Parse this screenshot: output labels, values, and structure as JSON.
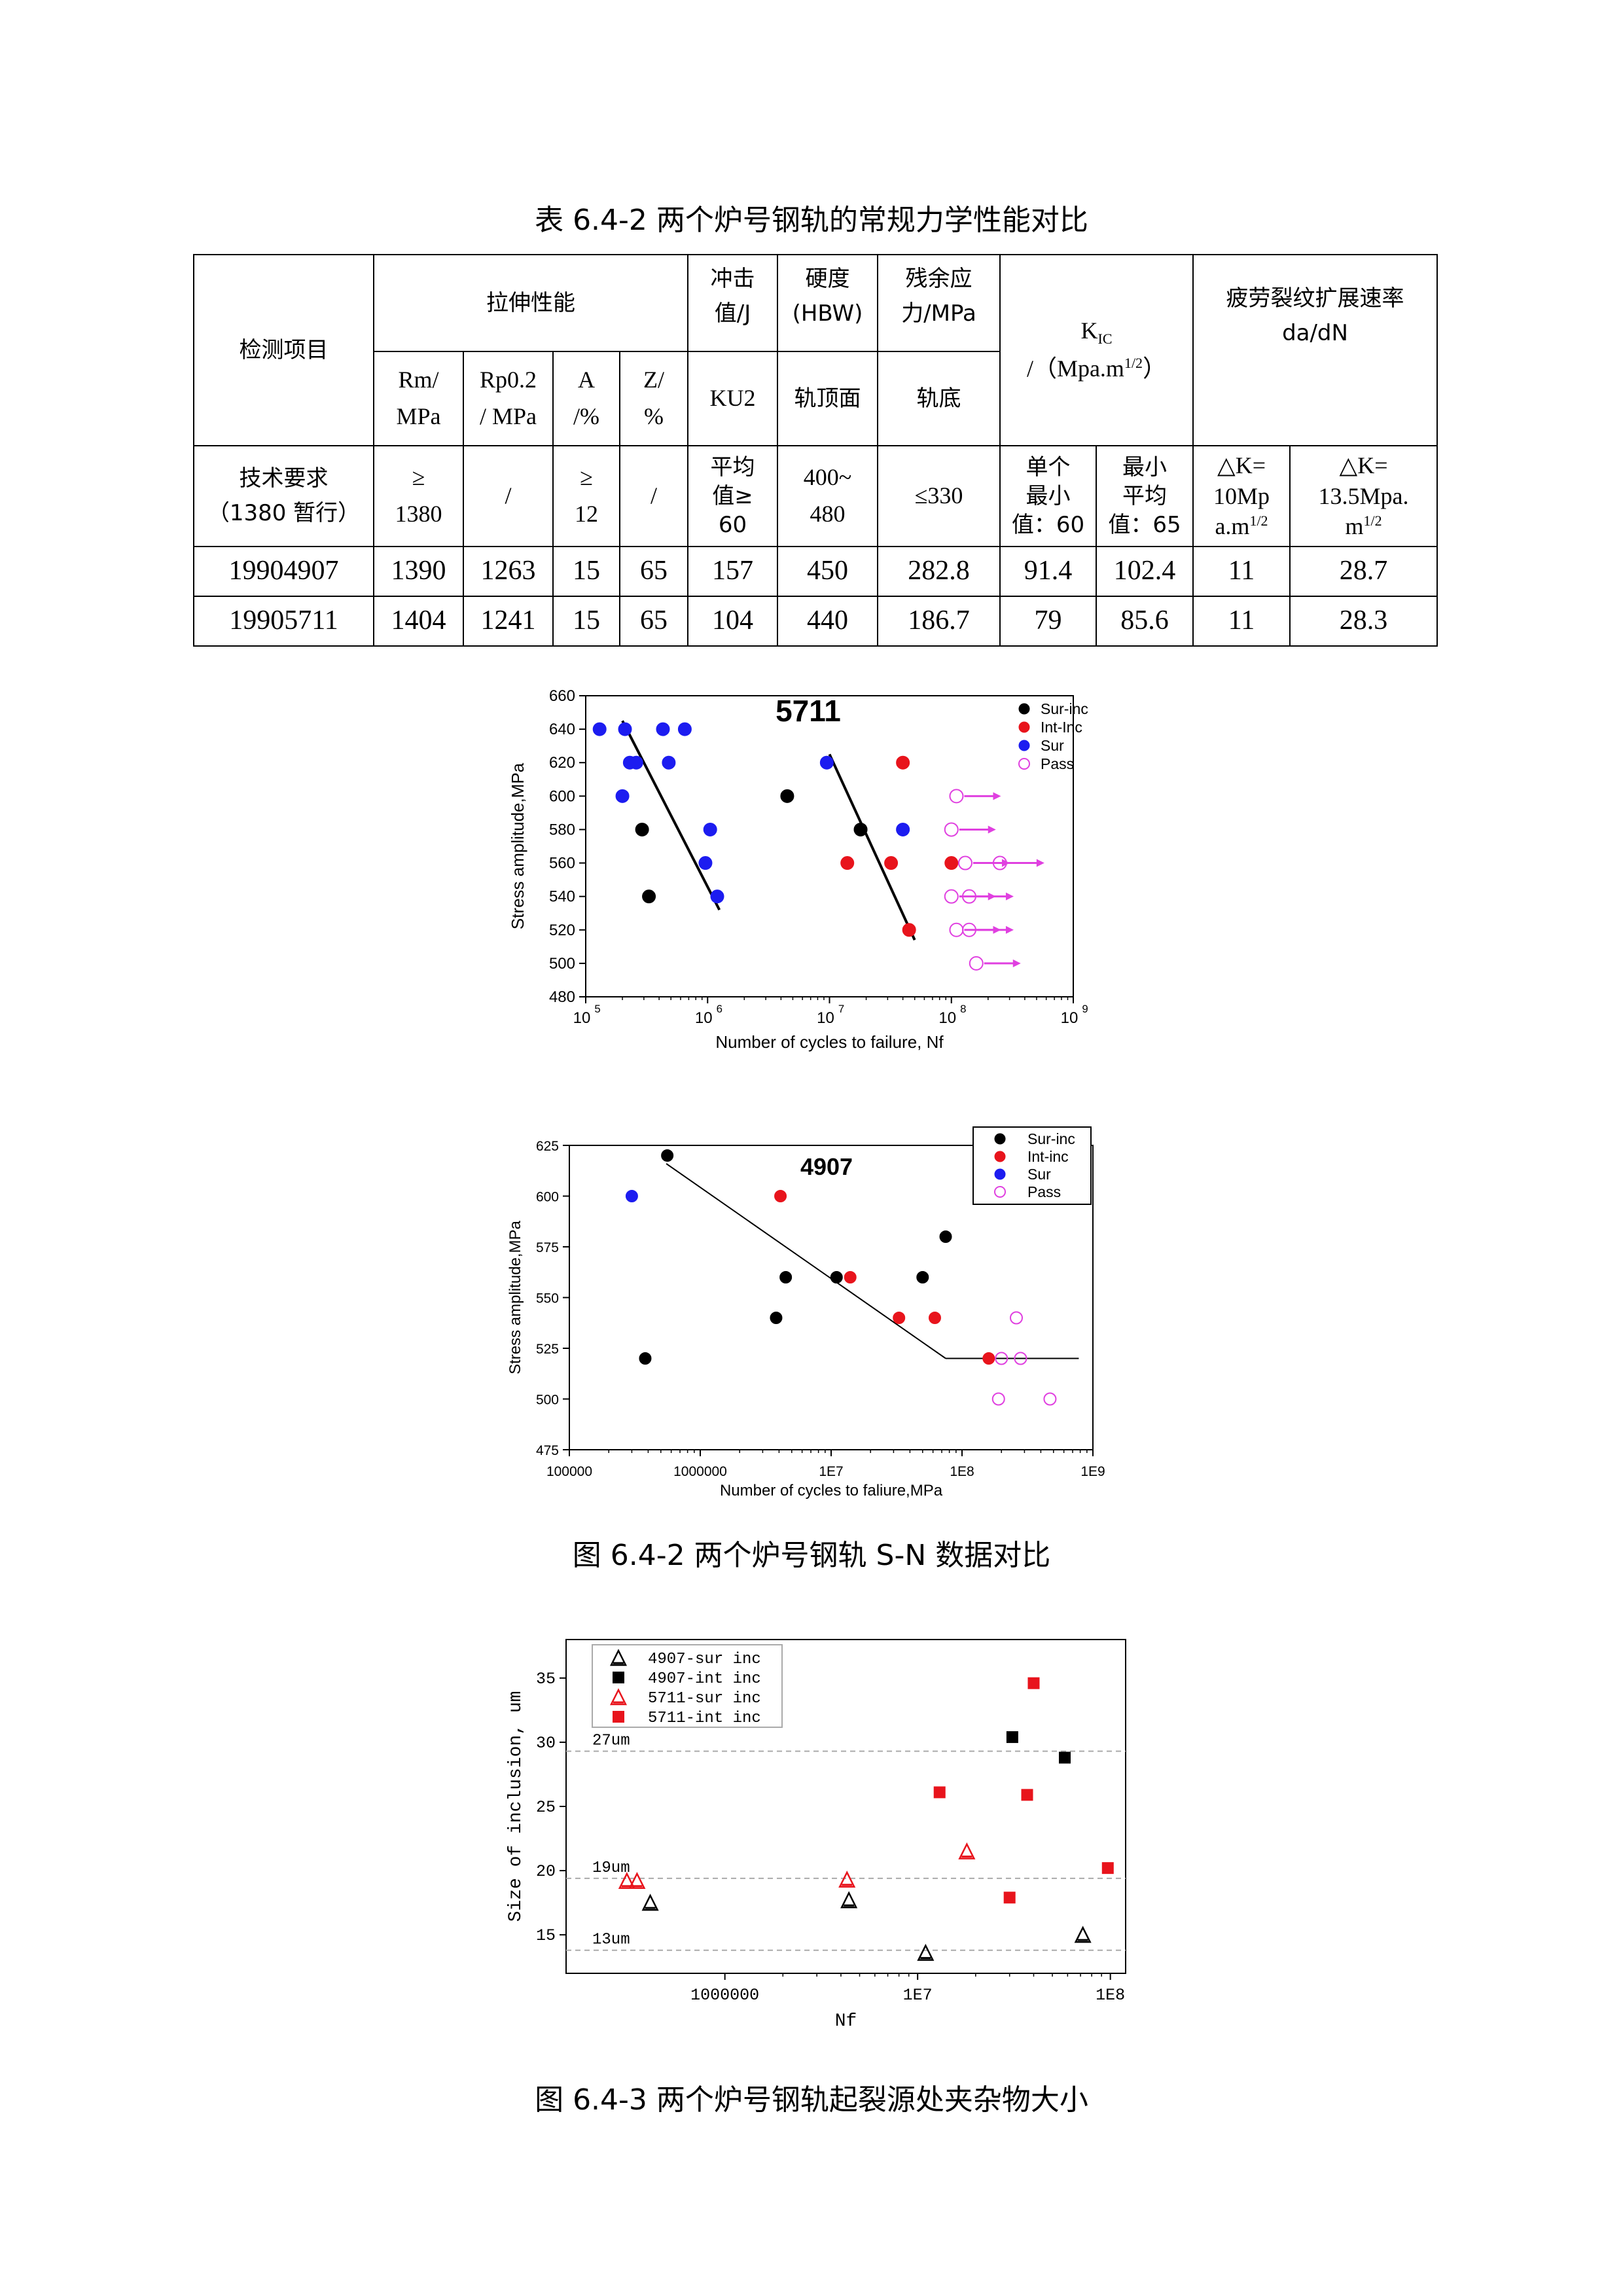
{
  "table_caption": "表 6.4-2  两个炉号钢轨的常规力学性能对比",
  "table": {
    "h_item": "检测项目",
    "h_tensile": "拉伸性能",
    "h_impact_1": "冲击",
    "h_impact_2": "值/J",
    "h_hard_1": "硬度",
    "h_hard_2": "(HBW)",
    "h_res_1": "残余应",
    "h_res_2": "力/MPa",
    "h_kic": "K",
    "h_kic_sub": "IC",
    "h_kic_unit": "/（Mpa.m",
    "h_kic_sup": "1/2",
    "h_kic_close": "）",
    "h_fcg_1": "疲劳裂纹扩展速率",
    "h_fcg_2": "da/dN",
    "sub_rm_1": "Rm/",
    "sub_rm_2": "MPa",
    "sub_rp_1": "Rp0.2",
    "sub_rp_2": "/ MPa",
    "sub_a_1": "A",
    "sub_a_2": "/%",
    "sub_z_1": "Z/",
    "sub_z_2": "%",
    "sub_ku2": "KU2",
    "sub_head": "轨顶面",
    "sub_base": "轨底",
    "req_label_1": "技术要求",
    "req_label_2": "（1380 暂行）",
    "req_rm_1": "≥",
    "req_rm_2": "1380",
    "req_rp": "/",
    "req_a_1": "≥",
    "req_a_2": "12",
    "req_z": "/",
    "req_ku_1": "平均",
    "req_ku_2": "值≥",
    "req_ku_3": "60",
    "req_hb_1": "400~",
    "req_hb_2": "480",
    "req_res": "≤330",
    "req_k1_1": "单个",
    "req_k1_2": "最小",
    "req_k1_3": "值：60",
    "req_k2_1": "最小",
    "req_k2_2": "平均",
    "req_k2_3": "值：65",
    "req_dk1_1": "△K=",
    "req_dk1_2": "10Mp",
    "req_dk1_3": "a.m",
    "req_dk1_sup": "1/2",
    "req_dk2_1": "△K=",
    "req_dk2_2": "13.5Mpa.",
    "req_dk2_3": "m",
    "req_dk2_sup": "1/2",
    "rows": [
      [
        "19904907",
        "1390",
        "1263",
        "15",
        "65",
        "157",
        "450",
        "282.8",
        "91.4",
        "102.4",
        "11",
        "28.7"
      ],
      [
        "19905711",
        "1404",
        "1241",
        "15",
        "65",
        "104",
        "440",
        "186.7",
        "79",
        "85.6",
        "11",
        "28.3"
      ]
    ]
  },
  "fig2_caption": "图 6.4-2 两个炉号钢轨 S-N 数据对比",
  "fig3_caption": "图 6.4-3  两个炉号钢轨起裂源处夹杂物大小",
  "chart_data": [
    {
      "type": "scatter",
      "title": "5711",
      "xlabel": "Number of cycles to failure, Nf",
      "ylabel": "Stress amplitude,MPa",
      "x_scale": "log",
      "xlim": [
        100000,
        1000000000
      ],
      "ylim": [
        480,
        660
      ],
      "yticks": [
        480,
        500,
        520,
        540,
        560,
        580,
        600,
        620,
        640,
        660
      ],
      "xtick_labels": [
        "10^5",
        "10^6",
        "10^7",
        "10^8",
        "10^9"
      ],
      "legend_position": "top-right",
      "series": [
        {
          "name": "Sur-inc",
          "color": "#000000",
          "points": [
            [
              290000,
              580
            ],
            [
              330000,
              540
            ],
            [
              4500000,
              600
            ],
            [
              18000000,
              580
            ]
          ]
        },
        {
          "name": "Int-Inc",
          "color": "#e8141c",
          "points": [
            [
              14000000,
              560
            ],
            [
              32000000,
              560
            ],
            [
              40000000,
              620
            ],
            [
              45000000,
              520
            ],
            [
              100000000,
              560
            ]
          ]
        },
        {
          "name": "Sur",
          "color": "#1c1cf0",
          "points": [
            [
              130000,
              640
            ],
            [
              210000,
              640
            ],
            [
              230000,
              620
            ],
            [
              260000,
              620
            ],
            [
              200000,
              600
            ],
            [
              430000,
              640
            ],
            [
              480000,
              620
            ],
            [
              650000,
              640
            ],
            [
              1050000,
              580
            ],
            [
              960000,
              560
            ],
            [
              1200000,
              540
            ],
            [
              9500000,
              620
            ],
            [
              40000000,
              580
            ]
          ]
        },
        {
          "name": "Pass",
          "color": "#e040e0",
          "points": [
            [
              110000000,
              600
            ],
            [
              100000000,
              580
            ],
            [
              130000000,
              560
            ],
            [
              250000000,
              560
            ],
            [
              100000000,
              540
            ],
            [
              140000000,
              540
            ],
            [
              110000000,
              520
            ],
            [
              140000000,
              520
            ],
            [
              160000000,
              500
            ]
          ]
        }
      ],
      "fit_lines": [
        {
          "from": [
            200000,
            645
          ],
          "to": [
            1250000,
            532
          ]
        },
        {
          "from": [
            10000000,
            625
          ],
          "to": [
            50000000,
            514
          ]
        }
      ]
    },
    {
      "type": "scatter",
      "title": "4907",
      "xlabel": "Number of cycles to faliure,MPa",
      "ylabel": "Stress amplitude,MPa",
      "x_scale": "log",
      "xlim": [
        100000,
        1000000000
      ],
      "ylim": [
        475,
        625
      ],
      "yticks": [
        475,
        500,
        525,
        550,
        575,
        600,
        625
      ],
      "xtick_labels": [
        "100000",
        "1000000",
        "1E7",
        "1E8",
        "1E9"
      ],
      "legend_position": "top-right",
      "series": [
        {
          "name": "Sur-inc",
          "color": "#000000",
          "points": [
            [
              560000,
              620
            ],
            [
              380000,
              520
            ],
            [
              3800000,
              540
            ],
            [
              4500000,
              560
            ],
            [
              11000000,
              560
            ],
            [
              50000000,
              560
            ],
            [
              75000000,
              580
            ]
          ]
        },
        {
          "name": "Int-inc",
          "color": "#e8141c",
          "points": [
            [
              4100000,
              600
            ],
            [
              14000000,
              560
            ],
            [
              33000000,
              540
            ],
            [
              62000000,
              540
            ],
            [
              160000000,
              520
            ]
          ]
        },
        {
          "name": "Sur",
          "color": "#1c1cf0",
          "points": [
            [
              300000,
              600
            ]
          ]
        },
        {
          "name": "Pass",
          "color": "#e040e0",
          "points": [
            [
              200000000,
              520
            ],
            [
              280000000,
              520
            ],
            [
              260000000,
              540
            ],
            [
              190000000,
              500
            ],
            [
              470000000,
              500
            ]
          ]
        }
      ],
      "fit_lines": [
        {
          "from": [
            550000,
            616
          ],
          "to": [
            75000000,
            520
          ]
        },
        {
          "from": [
            75000000,
            520
          ],
          "to": [
            780000000,
            520
          ]
        }
      ]
    },
    {
      "type": "scatter",
      "title": "",
      "xlabel": "Nf",
      "ylabel": "Size of inclusion, um",
      "x_scale": "log",
      "xlim": [
        150000,
        120000000
      ],
      "ylim": [
        12,
        38
      ],
      "yticks": [
        15,
        20,
        25,
        30,
        35
      ],
      "xtick_labels": [
        "1000000",
        "1E7",
        "1E8"
      ],
      "legend_position": "top-left",
      "reference_lines": [
        {
          "label": "27um",
          "y": 29.3
        },
        {
          "label": "19um",
          "y": 19.4
        },
        {
          "label": "13um",
          "y": 13.8
        }
      ],
      "series": [
        {
          "name": "4907-sur inc",
          "color": "#000000",
          "marker": "triangle",
          "points": [
            [
              410000,
              17.5
            ],
            [
              4400000,
              17.7
            ],
            [
              11000000,
              13.6
            ],
            [
              72000000,
              15.0
            ]
          ]
        },
        {
          "name": "4907-int inc",
          "color": "#000000",
          "marker": "square",
          "points": [
            [
              31000000,
              30.4
            ],
            [
              58000000,
              28.8
            ]
          ]
        },
        {
          "name": "5711-sur inc",
          "color": "#e8141c",
          "marker": "triangle",
          "points": [
            [
              310000,
              19.2
            ],
            [
              350000,
              19.2
            ],
            [
              4300000,
              19.3
            ],
            [
              18000000,
              21.5
            ]
          ]
        },
        {
          "name": "5711-int inc",
          "color": "#e8141c",
          "marker": "square",
          "points": [
            [
              13000000,
              26.1
            ],
            [
              40000000,
              34.6
            ],
            [
              37000000,
              25.9
            ],
            [
              30000000,
              17.9
            ],
            [
              97000000,
              20.2
            ]
          ]
        }
      ]
    }
  ]
}
